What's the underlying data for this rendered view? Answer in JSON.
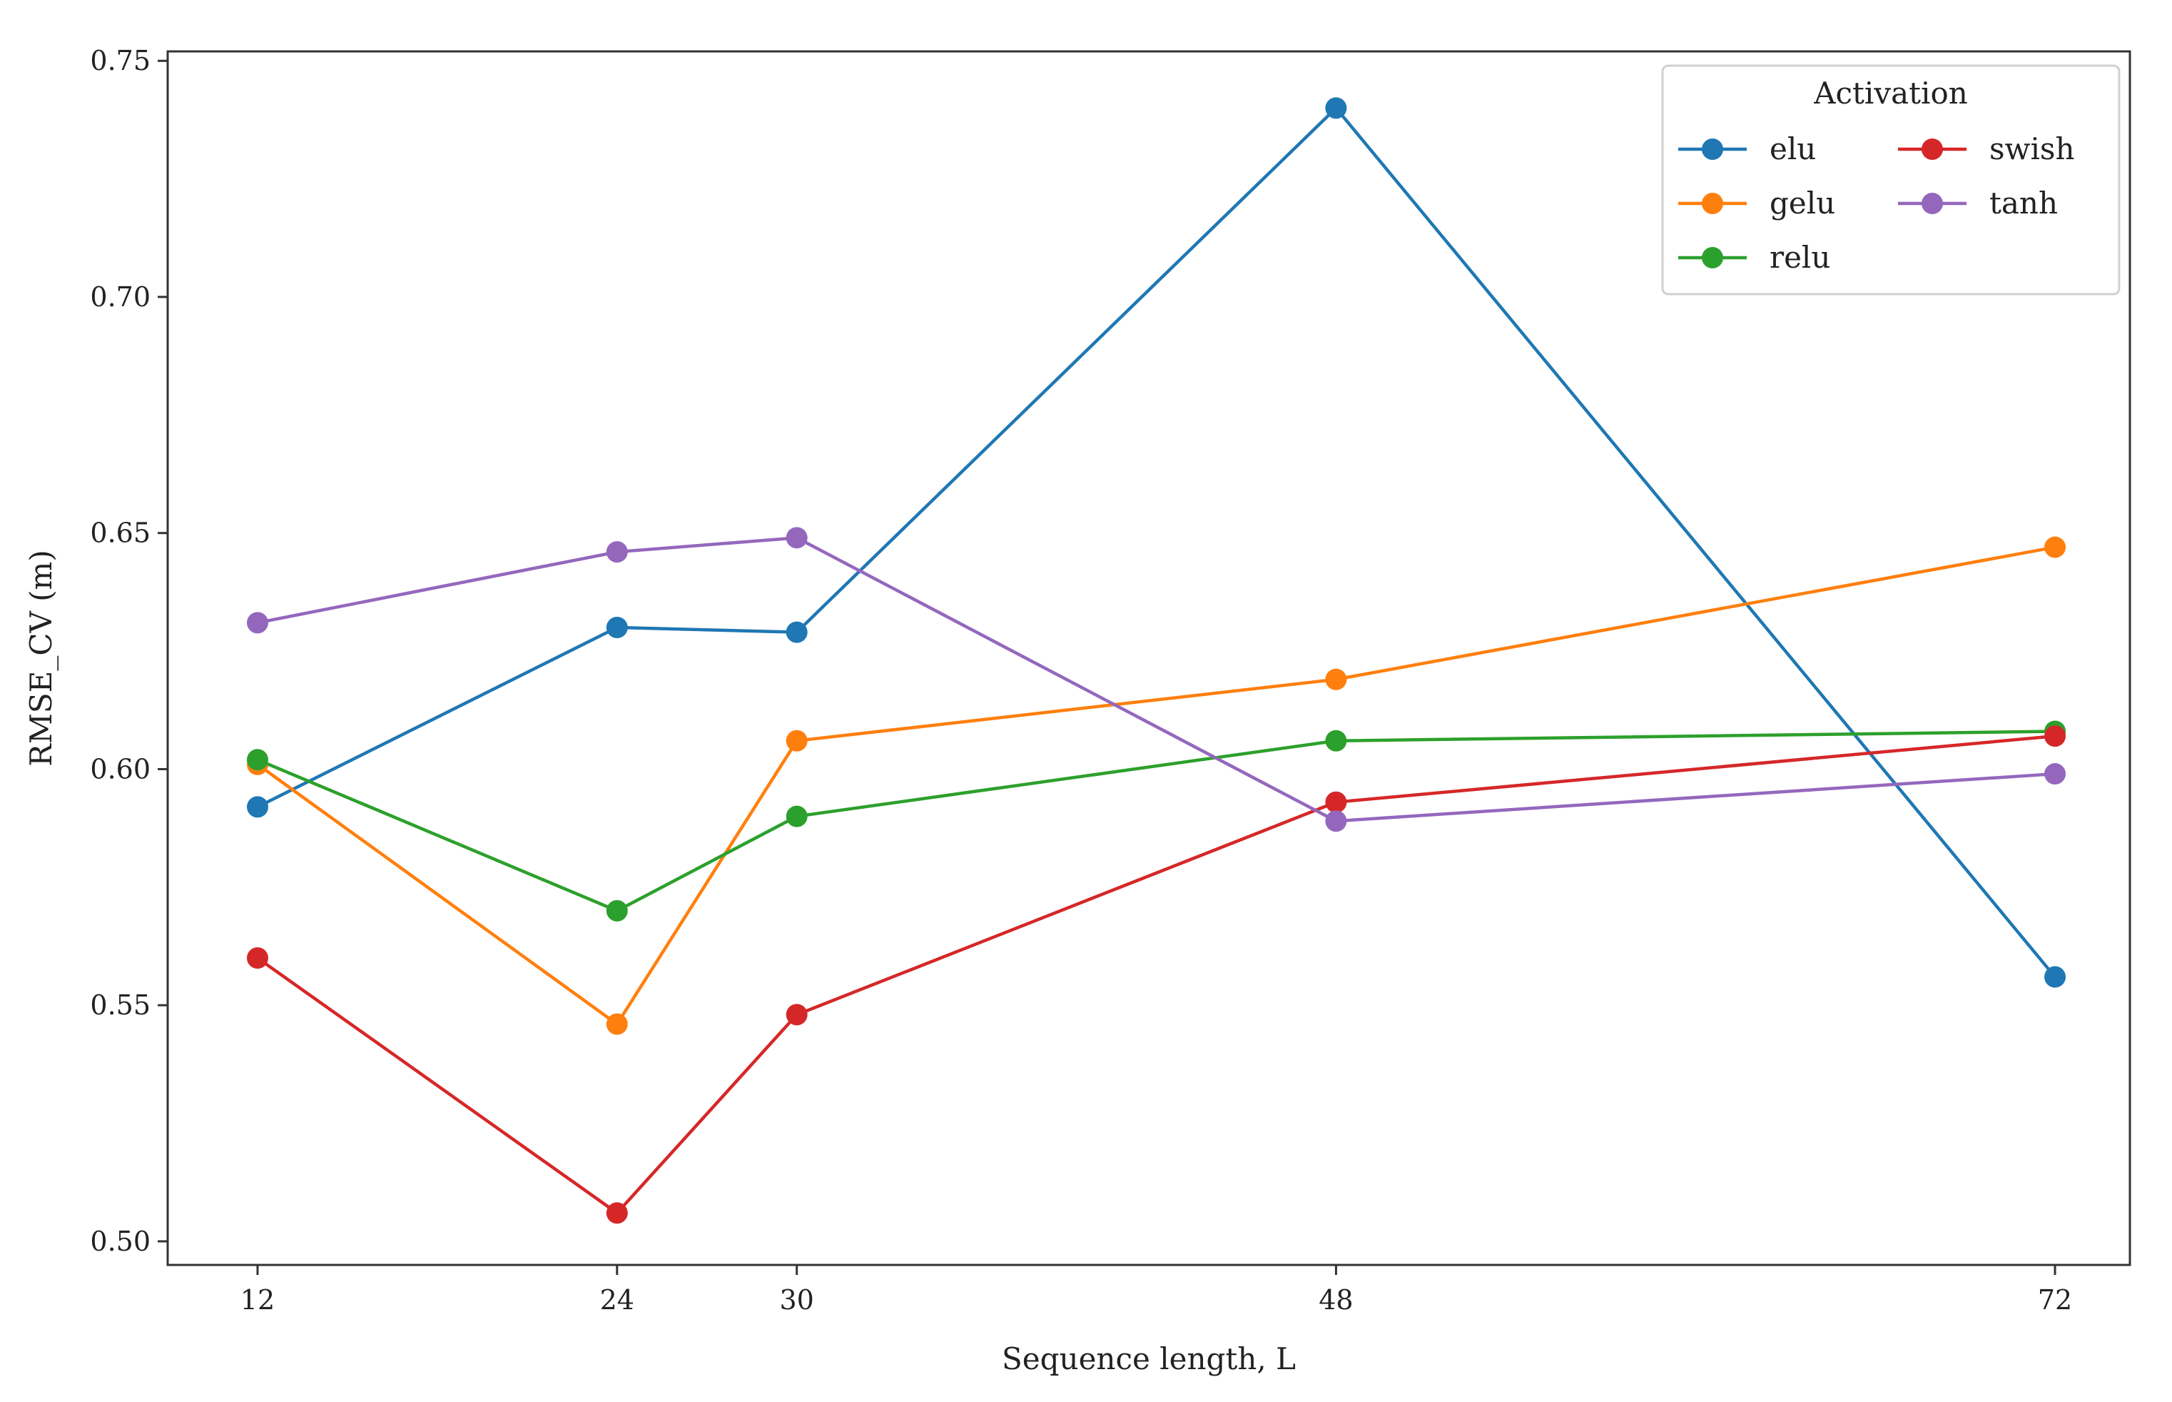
{
  "chart_data": {
    "type": "line",
    "title": "",
    "xlabel": "Sequence length, L",
    "ylabel": "RMSE_CV (m)",
    "x": [
      12,
      24,
      30,
      48,
      72
    ],
    "x_tick_labels": [
      "12",
      "24",
      "30",
      "48",
      "72"
    ],
    "y_ticks": [
      0.5,
      0.55,
      0.6,
      0.65,
      0.7,
      0.75
    ],
    "y_tick_labels": [
      "0.50",
      "0.55",
      "0.60",
      "0.65",
      "0.70",
      "0.75"
    ],
    "xlim": [
      9,
      74.5
    ],
    "ylim": [
      0.495,
      0.752
    ],
    "grid": false,
    "legend": {
      "title": "Activation",
      "placement": "top-right",
      "columns": 2
    },
    "series": [
      {
        "name": "elu",
        "color": "#1f77b4",
        "values": [
          0.592,
          0.63,
          0.629,
          0.74,
          0.556
        ]
      },
      {
        "name": "gelu",
        "color": "#ff7f0e",
        "values": [
          0.601,
          0.546,
          0.606,
          0.619,
          0.647
        ]
      },
      {
        "name": "relu",
        "color": "#2ca02c",
        "values": [
          0.602,
          0.57,
          0.59,
          0.606,
          0.608
        ]
      },
      {
        "name": "swish",
        "color": "#d62728",
        "values": [
          0.56,
          0.506,
          0.548,
          0.593,
          0.607
        ]
      },
      {
        "name": "tanh",
        "color": "#9467bd",
        "values": [
          0.631,
          0.646,
          0.649,
          0.589,
          0.599
        ]
      }
    ]
  }
}
